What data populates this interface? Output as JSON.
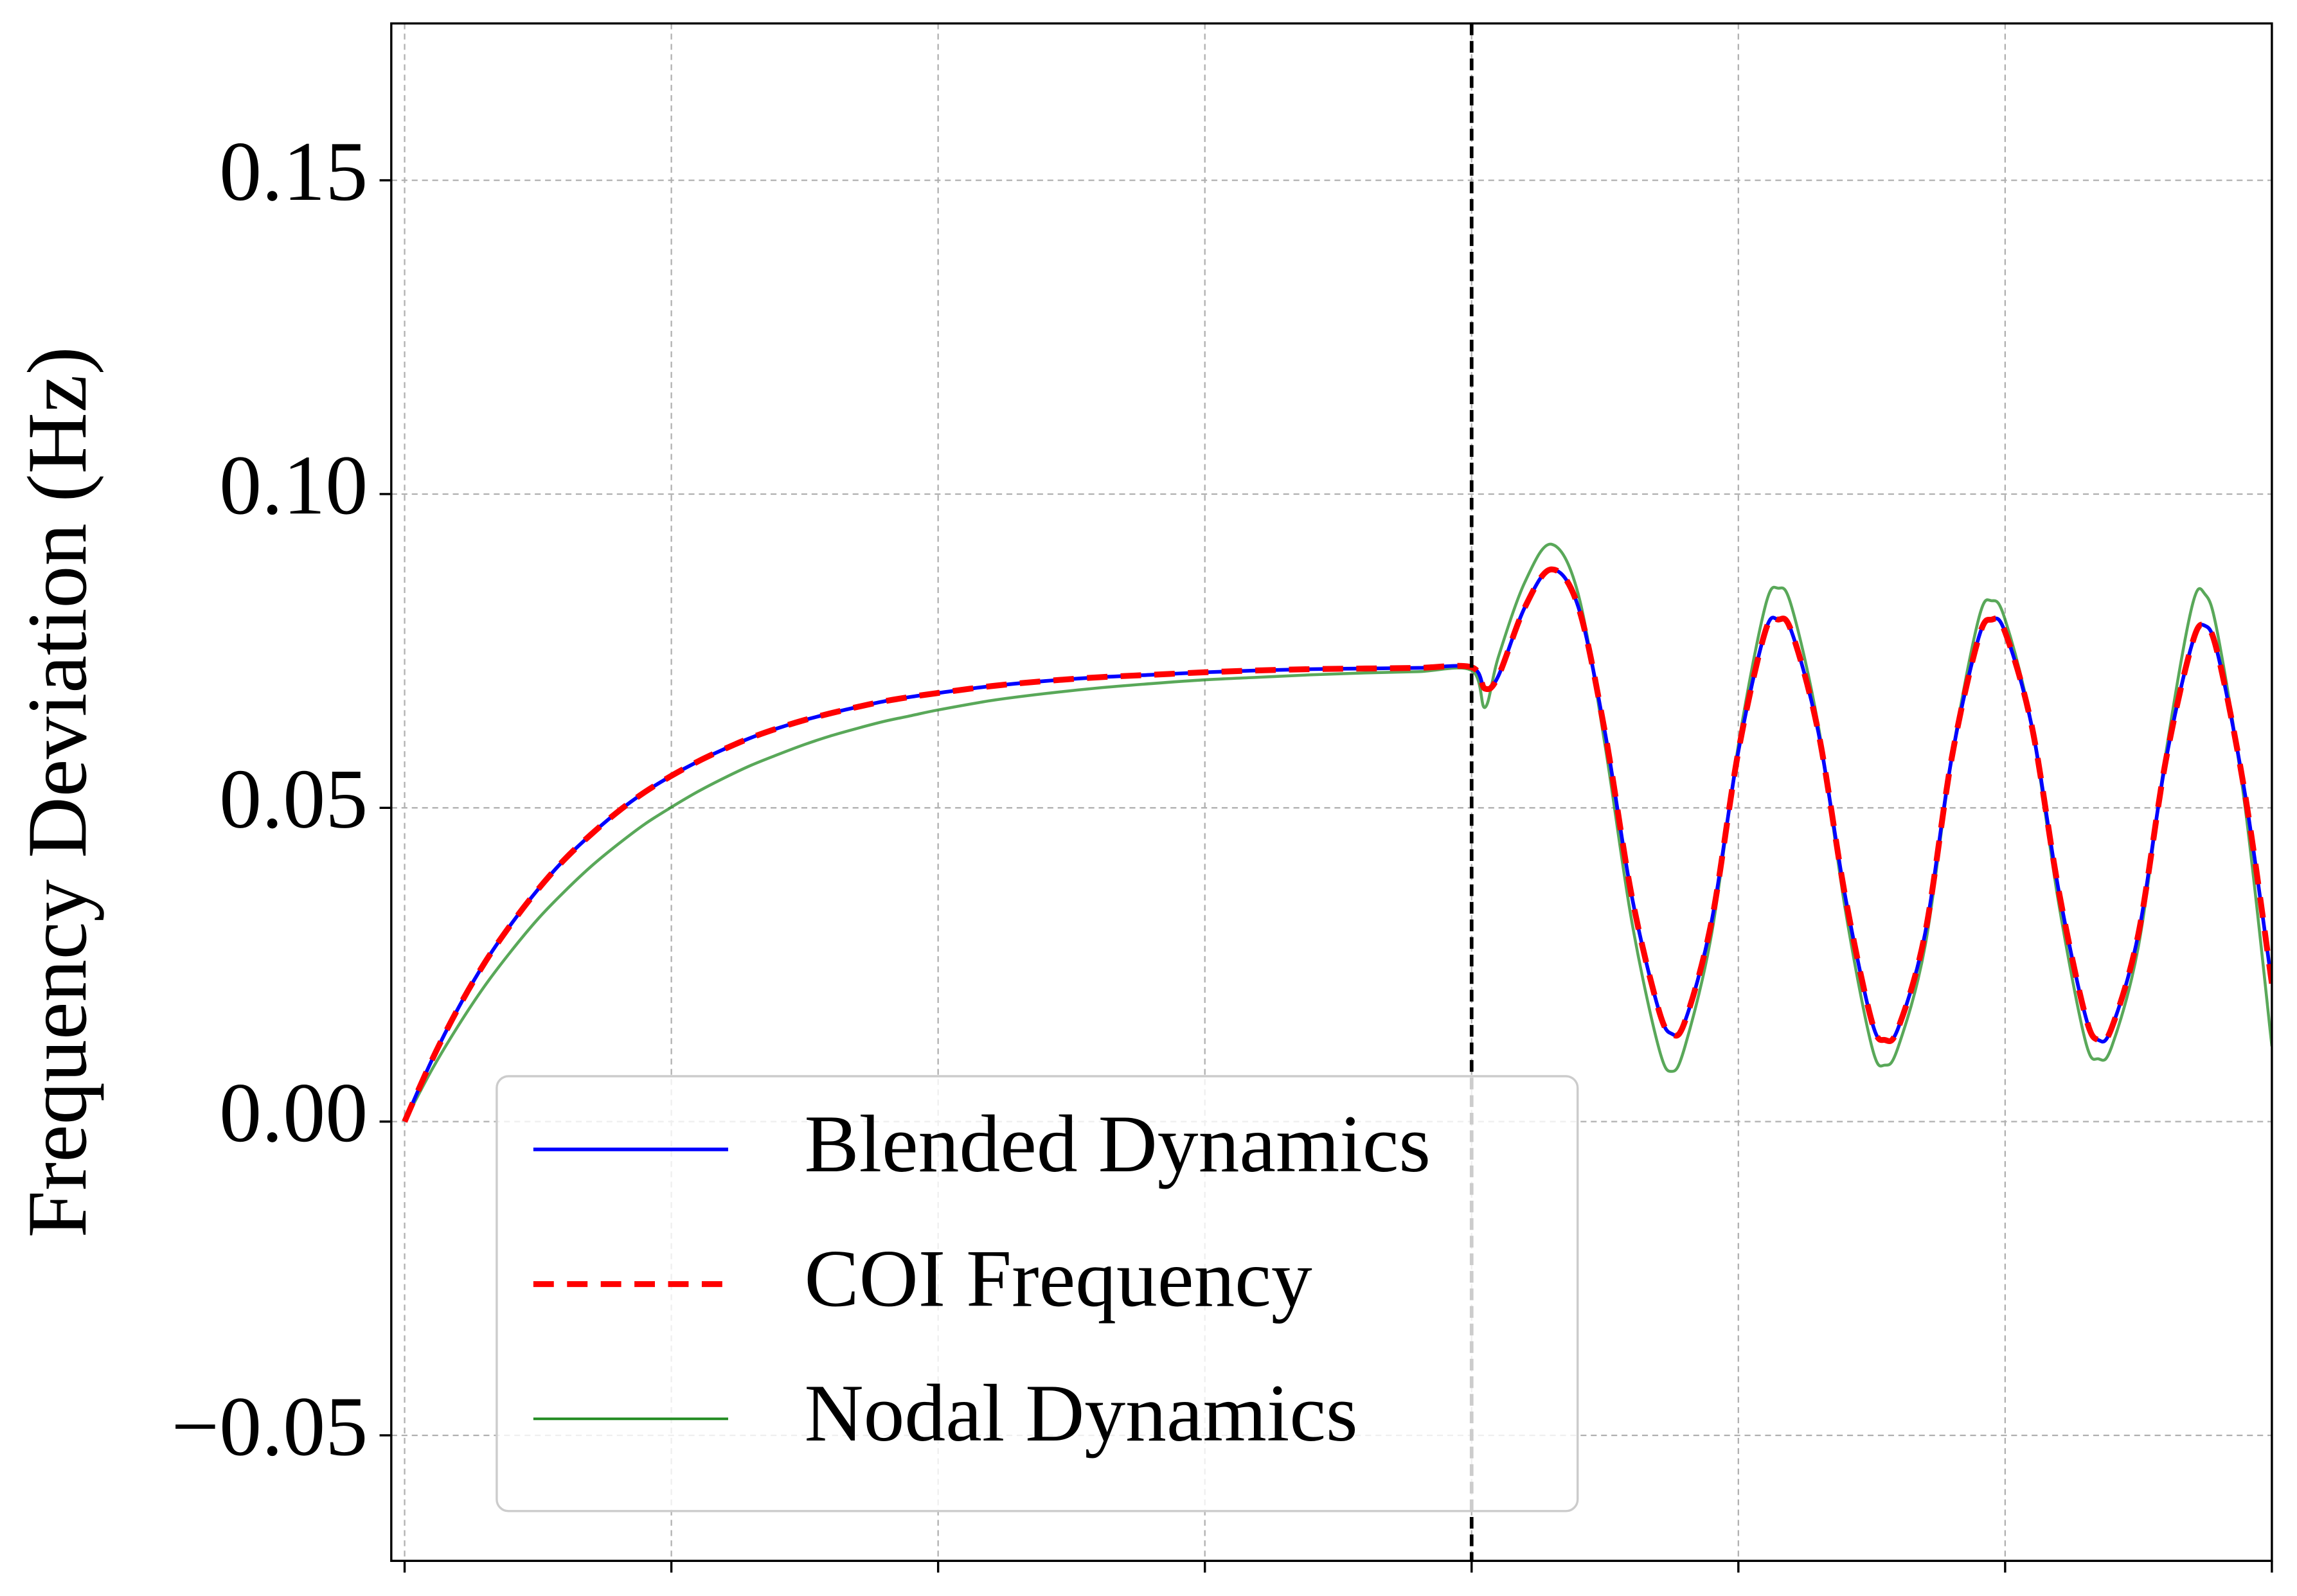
{
  "chart_data": {
    "type": "line",
    "y_label": "Frequency Deviation (Hz)",
    "x": [
      0,
      0.1,
      0.2,
      0.3,
      0.4,
      0.5,
      0.6,
      0.7,
      0.8,
      0.9,
      1.0,
      1.1,
      1.2,
      1.3,
      1.4,
      1.5,
      1.6,
      1.7,
      1.8,
      1.9,
      2.0,
      2.2,
      2.4,
      2.6,
      2.8,
      3.0,
      3.2,
      3.4,
      3.6,
      3.8,
      4.0,
      4.05,
      4.1,
      4.2,
      4.3,
      4.4,
      4.5,
      4.6,
      4.7,
      4.75,
      4.8,
      4.9,
      5.0,
      5.1,
      5.15,
      5.2,
      5.3,
      5.4,
      5.5,
      5.55,
      5.6,
      5.7,
      5.8,
      5.9,
      5.95,
      6.0,
      6.1,
      6.2,
      6.3,
      6.35,
      6.4,
      6.5,
      6.6,
      6.7,
      6.75,
      6.8,
      6.9,
      7.0
    ],
    "series": [
      {
        "name": "Nodal Dynamics",
        "color": "#228b22",
        "style": "solid",
        "values": [
          0,
          0.0081,
          0.0152,
          0.0216,
          0.0272,
          0.0323,
          0.0367,
          0.0407,
          0.0442,
          0.0474,
          0.0501,
          0.0526,
          0.0548,
          0.0568,
          0.0585,
          0.0601,
          0.0615,
          0.0627,
          0.0638,
          0.0647,
          0.0656,
          0.0671,
          0.0682,
          0.0691,
          0.0698,
          0.0704,
          0.0708,
          0.0712,
          0.0715,
          0.0717,
          0.0719,
          0.066,
          0.074,
          0.086,
          0.092,
          0.084,
          0.06,
          0.032,
          0.012,
          0.008,
          0.012,
          0.03,
          0.06,
          0.082,
          0.085,
          0.082,
          0.063,
          0.034,
          0.012,
          0.009,
          0.012,
          0.028,
          0.058,
          0.08,
          0.083,
          0.08,
          0.063,
          0.035,
          0.013,
          0.01,
          0.012,
          0.028,
          0.058,
          0.082,
          0.084,
          0.077,
          0.05,
          0.012
        ]
      },
      {
        "name": "Blended Dynamics",
        "color": "#0000ff",
        "style": "solid",
        "values": [
          0,
          0.0096,
          0.018,
          0.0253,
          0.0315,
          0.037,
          0.0418,
          0.0458,
          0.0494,
          0.0525,
          0.0551,
          0.0574,
          0.0594,
          0.0612,
          0.0627,
          0.064,
          0.0651,
          0.0661,
          0.067,
          0.0677,
          0.0683,
          0.0694,
          0.0702,
          0.0708,
          0.0712,
          0.0716,
          0.0719,
          0.0721,
          0.0722,
          0.0723,
          0.0724,
          0.069,
          0.071,
          0.082,
          0.088,
          0.082,
          0.062,
          0.036,
          0.018,
          0.014,
          0.016,
          0.032,
          0.059,
          0.078,
          0.08,
          0.078,
          0.062,
          0.036,
          0.016,
          0.013,
          0.015,
          0.03,
          0.058,
          0.077,
          0.08,
          0.078,
          0.063,
          0.037,
          0.017,
          0.013,
          0.015,
          0.03,
          0.057,
          0.076,
          0.079,
          0.074,
          0.052,
          0.022
        ]
      },
      {
        "name": "COI Frequency",
        "color": "#ff0000",
        "style": "dashed",
        "values": [
          0,
          0.0096,
          0.018,
          0.0253,
          0.0315,
          0.037,
          0.0418,
          0.0458,
          0.0494,
          0.0525,
          0.0551,
          0.0574,
          0.0594,
          0.0612,
          0.0627,
          0.064,
          0.0651,
          0.0661,
          0.067,
          0.0677,
          0.0683,
          0.0694,
          0.0702,
          0.0708,
          0.0712,
          0.0716,
          0.0719,
          0.0721,
          0.0722,
          0.0723,
          0.0724,
          0.069,
          0.071,
          0.082,
          0.088,
          0.082,
          0.062,
          0.036,
          0.018,
          0.014,
          0.016,
          0.032,
          0.059,
          0.078,
          0.08,
          0.078,
          0.062,
          0.036,
          0.016,
          0.013,
          0.015,
          0.03,
          0.058,
          0.077,
          0.08,
          0.078,
          0.063,
          0.037,
          0.017,
          0.013,
          0.015,
          0.03,
          0.057,
          0.076,
          0.079,
          0.074,
          0.052,
          0.022
        ]
      }
    ],
    "legend_order": [
      1,
      2,
      0
    ],
    "vlines": [
      4
    ],
    "xlim": [
      -0.05,
      7.0
    ],
    "xticks": [
      0,
      1,
      2,
      3,
      4,
      5,
      6,
      7
    ],
    "xtick_labels": false,
    "ylim": [
      -0.07,
      0.175
    ],
    "yticks": [
      {
        "value": -0.05,
        "label": "−0.05"
      },
      {
        "value": 0,
        "label": "0.00"
      },
      0.05,
      {
        "value": 0.1,
        "label": "0.10"
      },
      0.15
    ],
    "grid": true,
    "legend": "lower left"
  }
}
